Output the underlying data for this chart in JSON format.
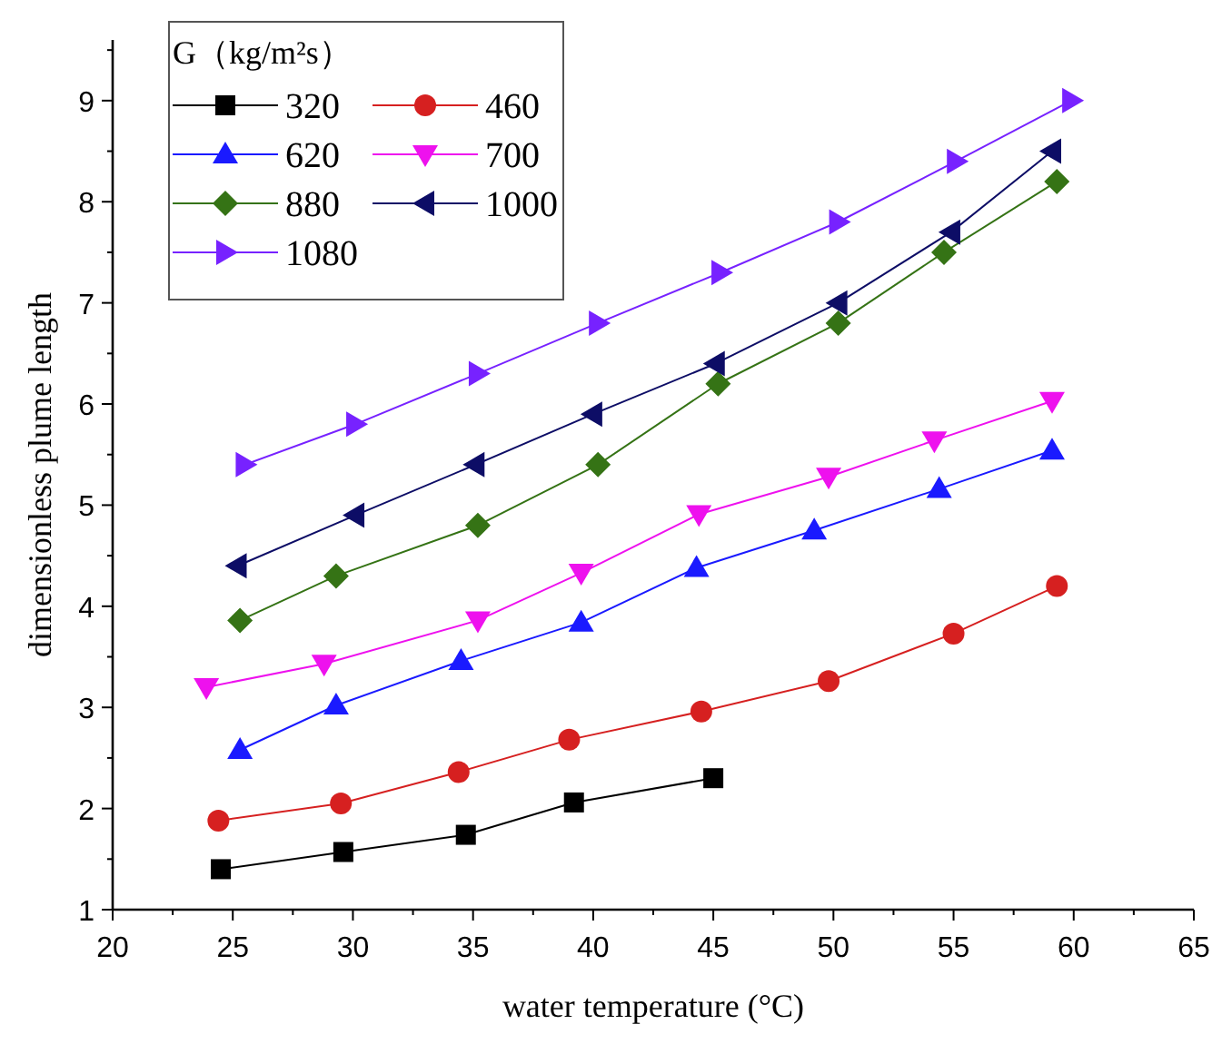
{
  "chart_data": {
    "type": "line",
    "xlabel": "water temperature (°C)",
    "ylabel": "dimensionless plume length",
    "legend_title": "G（kg/m²s）",
    "legend": "top left",
    "line_style": "solid",
    "grid": false,
    "xlim": [
      20,
      65
    ],
    "xticks": [
      20,
      25,
      30,
      35,
      40,
      45,
      50,
      55,
      60,
      65
    ],
    "ylim": [
      1,
      9.6
    ],
    "yticks": [
      1,
      2,
      3,
      4,
      5,
      6,
      7,
      8,
      9
    ],
    "series": [
      {
        "name": "320",
        "color": "#000000",
        "marker": "square",
        "x": [
          24.5,
          29.6,
          34.7,
          39.2,
          45
        ],
        "values": [
          1.4,
          1.57,
          1.74,
          2.06,
          2.3
        ]
      },
      {
        "name": "460",
        "color": "#d62020",
        "marker": "circle",
        "x": [
          24.4,
          29.5,
          34.4,
          39,
          44.5,
          49.8,
          55,
          59.3
        ],
        "values": [
          1.88,
          2.05,
          2.36,
          2.68,
          2.96,
          3.26,
          3.73,
          4.2
        ]
      },
      {
        "name": "620",
        "color": "#1a1aff",
        "marker": "triangle",
        "x": [
          25.3,
          29.3,
          34.5,
          39.5,
          44.3,
          49.2,
          54.4,
          59.1
        ],
        "values": [
          2.58,
          3.02,
          3.46,
          3.84,
          4.38,
          4.75,
          5.16,
          5.54
        ]
      },
      {
        "name": "700",
        "color": "#ee11ee",
        "marker": "triangle_down",
        "x": [
          23.9,
          28.8,
          35.2,
          39.5,
          44.4,
          49.8,
          54.2,
          59.1
        ],
        "values": [
          3.2,
          3.43,
          3.86,
          4.33,
          4.91,
          5.28,
          5.64,
          6.03
        ]
      },
      {
        "name": "880",
        "color": "#357315",
        "marker": "diamond",
        "x": [
          25.3,
          29.3,
          35.2,
          40.2,
          45.2,
          50.2,
          54.6,
          59.3
        ],
        "values": [
          3.86,
          4.3,
          4.8,
          5.4,
          6.2,
          6.8,
          7.5,
          8.2
        ]
      },
      {
        "name": "1000",
        "color": "#0d0d66",
        "marker": "triangle_left",
        "x": [
          25.2,
          30.1,
          35.1,
          40,
          45.1,
          50.2,
          54.9,
          59.1
        ],
        "values": [
          4.4,
          4.9,
          5.4,
          5.9,
          6.4,
          7.0,
          7.7,
          8.5
        ]
      },
      {
        "name": "1080",
        "color": "#7722ff",
        "marker": "triangle_right",
        "x": [
          25.5,
          30.1,
          35.2,
          40.2,
          45.3,
          50.2,
          55.1,
          59.9
        ],
        "values": [
          5.4,
          5.8,
          6.3,
          6.8,
          7.3,
          7.8,
          8.4,
          9.0
        ]
      }
    ]
  }
}
